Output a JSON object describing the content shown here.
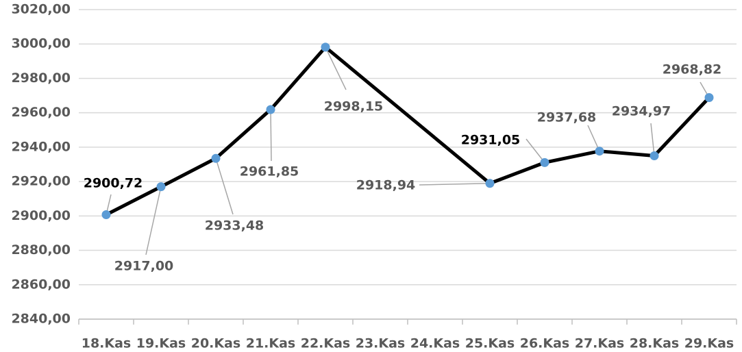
{
  "chart_data": {
    "type": "line",
    "categories": [
      "18.Kas",
      "19.Kas",
      "20.Kas",
      "21.Kas",
      "22.Kas",
      "23.Kas",
      "24.Kas",
      "25.Kas",
      "26.Kas",
      "27.Kas",
      "28.Kas",
      "29.Kas"
    ],
    "series": [
      {
        "color": "#000000",
        "marker_color": "#5b9bd5",
        "values": [
          2900.72,
          2917.0,
          2933.48,
          2961.85,
          2998.15,
          null,
          null,
          2918.94,
          2931.05,
          2937.68,
          2934.97,
          2968.82
        ],
        "value_labels": [
          "2900,72",
          "2917,00",
          "2933,48",
          "2961,85",
          "2998,15",
          null,
          null,
          "2918,94",
          "2931,05",
          "2937,68",
          "2934,97",
          "2968,82"
        ]
      }
    ],
    "ylim": [
      2840,
      3020
    ],
    "yticks": [
      {
        "value": 2840,
        "label": "2840,00"
      },
      {
        "value": 2860,
        "label": "2860,00"
      },
      {
        "value": 2880,
        "label": "2880,00"
      },
      {
        "value": 2900,
        "label": "2900,00"
      },
      {
        "value": 2920,
        "label": "2920,00"
      },
      {
        "value": 2940,
        "label": "2940,00"
      },
      {
        "value": 2960,
        "label": "2960,00"
      },
      {
        "value": 2980,
        "label": "2980,00"
      },
      {
        "value": 3000,
        "label": "3000,00"
      },
      {
        "value": 3020,
        "label": "3020,00"
      }
    ],
    "grid": true
  }
}
